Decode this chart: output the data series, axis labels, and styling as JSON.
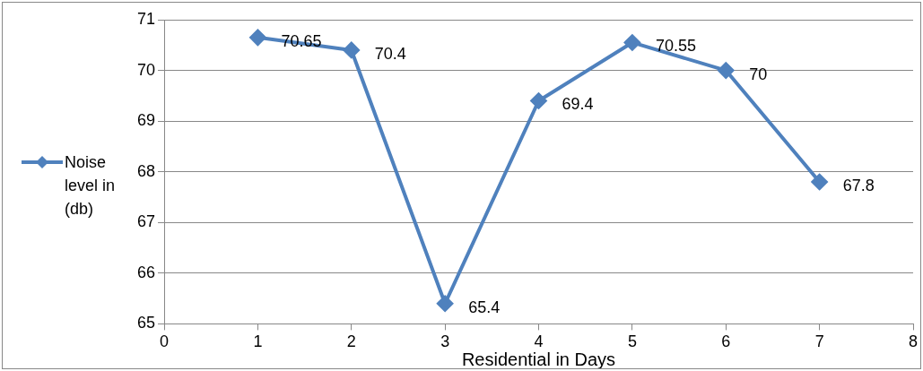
{
  "chart_data": {
    "type": "line",
    "xlabel": "Residential in Days",
    "x": [
      1,
      2,
      3,
      4,
      5,
      6,
      7
    ],
    "series": [
      {
        "name": "Noise level in (db)",
        "color": "#4f81bd",
        "values": [
          70.65,
          70.4,
          65.4,
          69.4,
          70.55,
          70,
          67.8
        ]
      }
    ],
    "xlim": [
      0,
      8
    ],
    "xticks": [
      0,
      1,
      2,
      3,
      4,
      5,
      6,
      7,
      8
    ],
    "ylim": [
      65,
      71
    ],
    "yticks": [
      65,
      66,
      67,
      68,
      69,
      70,
      71
    ],
    "grid": "y",
    "legend": "left",
    "marker": "diamond",
    "data_labels": true
  }
}
